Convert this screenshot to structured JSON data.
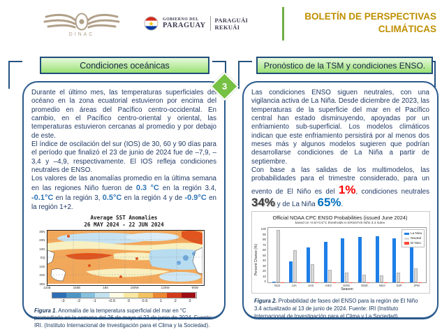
{
  "header": {
    "dinac_label": "DINAC",
    "gov_logo": {
      "line1_small": "GOBIERNO DEL",
      "line1_big": "PARAGUAY",
      "line2_a": "PARAGUÁI",
      "line2_b": "REKUÁI"
    },
    "title_line1": "BOLETÍN DE PERSPECTIVAS",
    "title_line2": "CLIMÁTICAS"
  },
  "page_marker": "3",
  "colors": {
    "gold_title": "#BF8F00",
    "accent_green": "#70AD47",
    "diamond_green": "#76C043",
    "panel_border_navy": "#2a5a8c",
    "body_text_navy": "#1F3864",
    "value_blue": "#2E75B6",
    "pct_red": "#FF0000",
    "pct_blue": "#0070C0"
  },
  "left_panel": {
    "title": "Condiciones oceánicas",
    "para1": "Durante el último mes, las temperaturas superficiales del océano en la zona ecuatorial estuvieron por encima del promedio en áreas del Pacífico centro-occidental. En cambio, en el Pacífico centro-oriental y oriental, las temperaturas estuvieron cercanas al promedio y por debajo de este.",
    "para2": "El índice de oscilación del sur (IOS) de 30, 60 y 90 días para el período que finalizó el 23 de junio de 2024 fue de –7,9, –3,4 y –4,9, respectivamente. El IOS refleja condiciones neutrales de ENSO.",
    "para3": {
      "t1": "Los valores de las anomalías promedio en la última semana en las regiones Niño fueron de ",
      "v1": "0.3 °C",
      "t2": " en la región 3.4, ",
      "v2": "-0.1°C",
      "t3": " en la región 3, ",
      "v3": "0.5°C",
      "t4": " en la región 4 y de ",
      "v4": "-0.9°C",
      "t5": " en la región 1+2."
    },
    "figure1": {
      "caption_label": "Figura 1",
      "caption_text": ". Anomalía de la temperatura superficial del mar en °C promediada en la semana del 26 de mayo al 22 de junio de 2024. Fuente: IRI. (Instituto Internacional de Investigación para el Clima y la Sociedad)."
    }
  },
  "right_panel": {
    "title": "Pronóstico de la TSM y condiciones ENSO.",
    "para1": "Las condiciones ENSO siguen neutrales, con una vigilancia activa de La Niña. Desde diciembre de 2023, las temperaturas de la superficie del mar en el Pacífico central han estado disminuyendo, apoyadas por un enfriamiento sub-superficial. Los modelos climáticos indican que este enfriamiento persistirá por al menos dos meses más y algunos modelos sugieren que podrían desarrollarse condiciones de La Niña a partir de septiembre.",
    "para2": {
      "t1": "Con base a las salidas de los multimodelos, las probabilidades para el trimestre considerado, para un evento de El Niño es del ",
      "v1": "1%",
      "t2": ",  condiciones neutrales ",
      "v2": "34%",
      "t3": " y de La Niña ",
      "v3": "65%",
      "t4": "."
    },
    "figure2": {
      "caption_label": "Figura 2.",
      "caption_text": " Probabilidad de fases del ENSO para la región de El Niño 3.4 actualizado al 13 de junio de 2024. Fuente: IRI (Instituto Internacional de Investigación para el Clima y La Sociedad)."
    }
  },
  "chart_data": [
    {
      "id": "sst_anomaly_map",
      "type": "heatmap",
      "title": "Average SST Anomalies",
      "subtitle": "26 MAY 2024 - 22 JUN 2024",
      "y_ticks": [
        "30N",
        "20N",
        "10N",
        "EQ",
        "10S",
        "20S",
        "30S"
      ],
      "x_ticks": [
        "120E",
        "150E",
        "180",
        "150W",
        "120W",
        "90W"
      ],
      "colorbar": {
        "labels": [
          "-3",
          "-2",
          "-1",
          "-0.5",
          "0",
          "0.5",
          "1",
          "2",
          "3"
        ],
        "colors": [
          "#2d6fb5",
          "#4f96c7",
          "#86c0dc",
          "#c3e1ef",
          "#fdfbe4",
          "#f8e8a2",
          "#f3c261",
          "#ec8633",
          "#d23a1a",
          "#9e0d14"
        ]
      }
    },
    {
      "id": "enso_probabilities",
      "type": "bar",
      "title": "Official NOAA CPC ENSO Probabilities (issued June 2024)",
      "subtitle": "based on -0.5/+0.5°C thresholds in ERSSTv5 Niño 3.4 index",
      "xlabel": "Season",
      "ylabel": "Percent Chance (%)",
      "ylim": [
        0,
        100
      ],
      "yticks": [
        0,
        10,
        20,
        30,
        40,
        50,
        60,
        70,
        80,
        90,
        100
      ],
      "grid": false,
      "legend_position": "top-right",
      "categories": [
        "MJJ",
        "JJA",
        "JAS",
        "ASO",
        "SON",
        "OND",
        "NDJ",
        "DJF",
        "JFM"
      ],
      "series": [
        {
          "name": "La Nina",
          "color": "#1e7fe8",
          "values": [
            2,
            39,
            65,
            75,
            81,
            84,
            85,
            81,
            73
          ]
        },
        {
          "name": "Neutral",
          "color": "#d9d9d9",
          "values": [
            97,
            60,
            34,
            24,
            18,
            15,
            14,
            18,
            26
          ]
        },
        {
          "name": "El Nino",
          "color": "#ff4533",
          "values": [
            1,
            1,
            1,
            1,
            1,
            1,
            1,
            1,
            1
          ]
        }
      ]
    }
  ]
}
